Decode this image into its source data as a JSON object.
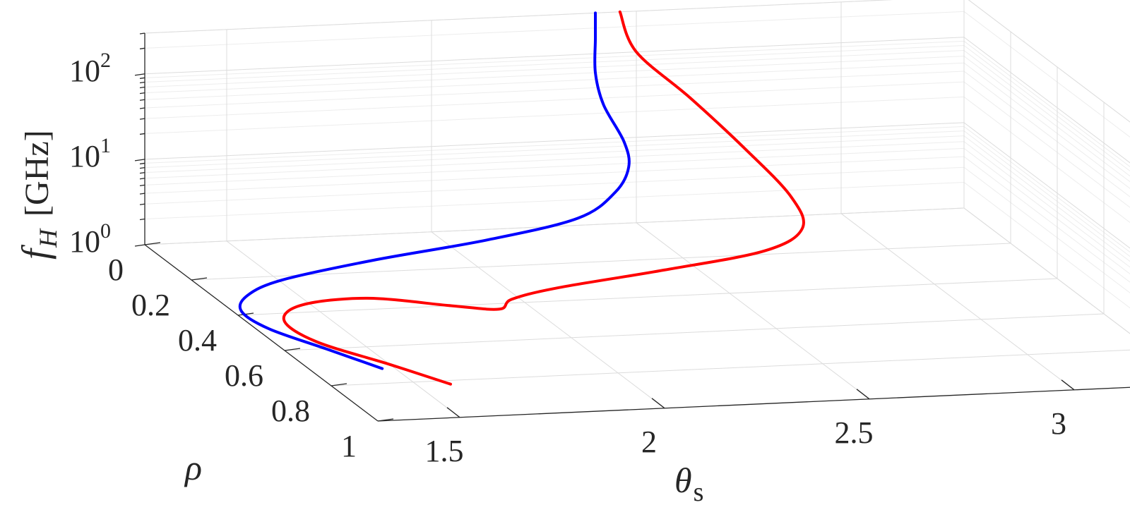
{
  "chart_data": {
    "type": "line3d",
    "xlabel": "θ",
    "xlabel_sub": "s",
    "ylabel": "ρ",
    "zlabel": "f",
    "zlabel_sub": "H",
    "zlabel_unit": "[GHz]",
    "x_ticks": [
      "1.5",
      "2",
      "2.5",
      "3"
    ],
    "y_ticks": [
      "0",
      "0.2",
      "0.4",
      "0.6",
      "0.8",
      "1"
    ],
    "z_ticks": [
      {
        "base": "10",
        "exp": "0"
      },
      {
        "base": "10",
        "exp": "1"
      },
      {
        "base": "10",
        "exp": "2"
      }
    ],
    "xlim": [
      1.3,
      3.3
    ],
    "ylim": [
      0,
      1
    ],
    "zlim": [
      1,
      300
    ],
    "zscale": "log",
    "grid": true,
    "series": [
      {
        "color": "#0000ff",
        "points": [
          [
            2.4,
            0.0,
            300
          ],
          [
            2.4,
            0.0,
            150
          ],
          [
            2.4,
            0.0,
            60
          ],
          [
            2.42,
            0.0,
            25
          ],
          [
            2.47,
            0.0,
            9
          ],
          [
            2.47,
            0.02,
            5
          ],
          [
            2.42,
            0.05,
            3
          ],
          [
            2.3,
            0.1,
            2
          ],
          [
            2.05,
            0.15,
            1.6
          ],
          [
            1.75,
            0.19,
            1.3
          ],
          [
            1.5,
            0.24,
            1.1
          ],
          [
            1.38,
            0.3,
            1.02
          ],
          [
            1.32,
            0.38,
            1.0
          ],
          [
            1.33,
            0.48,
            1.0
          ],
          [
            1.4,
            0.6,
            1.0
          ],
          [
            1.47,
            0.72,
            1.0
          ]
        ]
      },
      {
        "color": "#ff0000",
        "points": [
          [
            2.46,
            0.0,
            300
          ],
          [
            2.5,
            0.0,
            100
          ],
          [
            2.62,
            0.02,
            30
          ],
          [
            2.74,
            0.05,
            8
          ],
          [
            2.82,
            0.1,
            2.8
          ],
          [
            2.82,
            0.15,
            1.5
          ],
          [
            2.7,
            0.2,
            1.1
          ],
          [
            2.42,
            0.26,
            1.0
          ],
          [
            2.12,
            0.33,
            1.0
          ],
          [
            1.98,
            0.38,
            1.0
          ],
          [
            1.92,
            0.43,
            1.0
          ],
          [
            1.82,
            0.4,
            1.0
          ],
          [
            1.65,
            0.34,
            1.0
          ],
          [
            1.48,
            0.36,
            1.0
          ],
          [
            1.39,
            0.44,
            1.0
          ],
          [
            1.4,
            0.56,
            1.0
          ],
          [
            1.5,
            0.7,
            1.0
          ],
          [
            1.58,
            0.82,
            1.0
          ]
        ]
      }
    ]
  }
}
